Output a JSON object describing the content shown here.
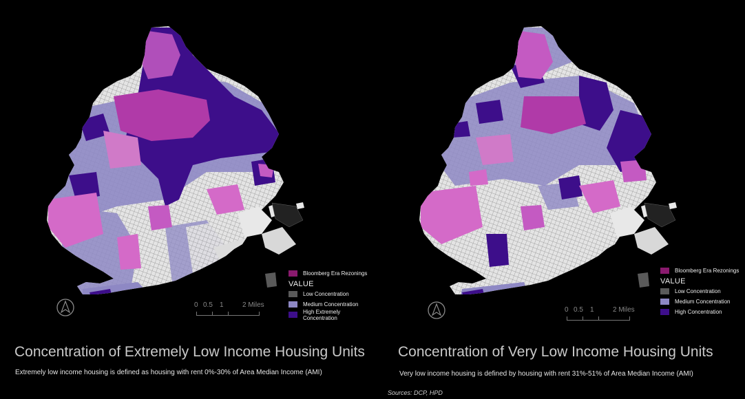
{
  "colors": {
    "background": "#000000",
    "rezoning": "#8a1a6e",
    "low": "#5a5a5a",
    "medium": "#8e88c4",
    "high": "#3d0e8a",
    "magenta": "#c45ac2",
    "street": "#d6d6d6"
  },
  "maps": [
    {
      "title": "Concentration of Extremely Low Income Housing Units",
      "subtitle": "Extremely low income housing is defined as housing with rent 0%-30% of Area Median Income (AMI)",
      "legend": {
        "rezoning_label": "Bloomberg Era Rezonings",
        "value_heading": "VALUE",
        "classes": [
          {
            "label": "Low Concentration",
            "color": "#5a5a5a"
          },
          {
            "label": "Medium Concentration",
            "color": "#8e88c4"
          },
          {
            "label": "High Extremely Concentration",
            "color": "#3d0e8a"
          }
        ]
      },
      "scale": {
        "ticks": [
          "0",
          "0.5",
          "1",
          "2 Miles"
        ]
      },
      "north_icon": "north-arrow-icon"
    },
    {
      "title": "Concentration of Very Low Income Housing Units",
      "subtitle": "Very low income housing is defined by housing with rent 31%-51% of Area Median Income (AMI)",
      "legend": {
        "rezoning_label": "Bloomberg Era Rezonings",
        "value_heading": "VALUE",
        "classes": [
          {
            "label": "Low Concentration",
            "color": "#5a5a5a"
          },
          {
            "label": "Medium Concentration",
            "color": "#8e88c4"
          },
          {
            "label": "High Concentration",
            "color": "#3d0e8a"
          }
        ]
      },
      "scale": {
        "ticks": [
          "0",
          "0.5",
          "1",
          "2 Miles"
        ]
      },
      "north_icon": "north-arrow-icon"
    }
  ],
  "sources": "Sources: DCP, HPD"
}
